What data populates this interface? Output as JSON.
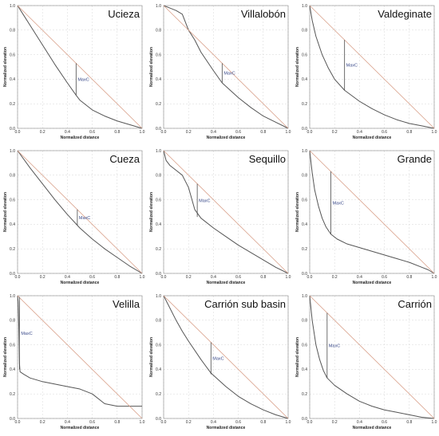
{
  "colors": {
    "curve": "#555555",
    "diagonal": "#d9a08a",
    "maxc_line": "#4a4a4a",
    "maxc_text": "#3a4a8a",
    "grid": "#d7d7d7",
    "frame": "#888888"
  },
  "chart_data": [
    {
      "type": "line",
      "title": "Ucieza",
      "xlabel": "Normalized distance",
      "ylabel": "Normalized elevation",
      "xlim": [
        0,
        1
      ],
      "ylim": [
        0,
        1
      ],
      "xticks": [
        "0.0",
        "0.2",
        "0.4",
        "0.6",
        "0.8",
        "1.0"
      ],
      "yticks": [
        "0.0",
        "0.2",
        "0.4",
        "0.6",
        "0.8",
        "1.0"
      ],
      "grid": true,
      "series": [
        {
          "role": "curve",
          "x": [
            0,
            0.05,
            0.1,
            0.2,
            0.3,
            0.4,
            0.47,
            0.5,
            0.55,
            0.6,
            0.7,
            0.8,
            0.9,
            1.0
          ],
          "y": [
            1.0,
            0.92,
            0.84,
            0.68,
            0.52,
            0.37,
            0.27,
            0.23,
            0.19,
            0.15,
            0.1,
            0.06,
            0.03,
            0.0
          ]
        },
        {
          "role": "diagonal",
          "x": [
            0,
            1
          ],
          "y": [
            1,
            0
          ]
        }
      ],
      "annotation": {
        "text": "MaxC",
        "x": 0.47,
        "y_from": 0.27,
        "y_to": 0.53
      }
    },
    {
      "type": "line",
      "title": "Villalobón",
      "xlabel": "Normalized distance",
      "ylabel": "Normalized elevation",
      "xlim": [
        0,
        1
      ],
      "ylim": [
        0,
        1
      ],
      "xticks": [
        "0.0",
        "0.2",
        "0.4",
        "0.6",
        "0.8",
        "1.0"
      ],
      "yticks": [
        "0.0",
        "0.2",
        "0.4",
        "0.6",
        "0.8",
        "1.0"
      ],
      "grid": true,
      "series": [
        {
          "role": "curve",
          "x": [
            0,
            0.05,
            0.1,
            0.15,
            0.2,
            0.25,
            0.3,
            0.4,
            0.47,
            0.6,
            0.7,
            0.8,
            0.9,
            1.0
          ],
          "y": [
            1.0,
            0.98,
            0.96,
            0.93,
            0.8,
            0.72,
            0.62,
            0.47,
            0.37,
            0.25,
            0.17,
            0.1,
            0.05,
            0.0
          ]
        },
        {
          "role": "diagonal",
          "x": [
            0,
            1
          ],
          "y": [
            1,
            0
          ]
        }
      ],
      "annotation": {
        "text": "MaxC",
        "x": 0.47,
        "y_from": 0.37,
        "y_to": 0.53
      }
    },
    {
      "type": "line",
      "title": "Valdeginate",
      "xlabel": "Normalized distance",
      "ylabel": "Normalized elevation",
      "xlim": [
        0,
        1
      ],
      "ylim": [
        0,
        1
      ],
      "xticks": [
        "0.0",
        "0.2",
        "0.4",
        "0.6",
        "0.8",
        "1.0"
      ],
      "yticks": [
        "0.0",
        "0.2",
        "0.4",
        "0.6",
        "0.8",
        "1.0"
      ],
      "grid": true,
      "series": [
        {
          "role": "curve",
          "x": [
            0,
            0.02,
            0.05,
            0.1,
            0.15,
            0.2,
            0.28,
            0.4,
            0.5,
            0.6,
            0.7,
            0.8,
            0.9,
            1.0
          ],
          "y": [
            1.0,
            0.88,
            0.75,
            0.6,
            0.49,
            0.4,
            0.31,
            0.22,
            0.16,
            0.11,
            0.07,
            0.04,
            0.02,
            0.0
          ]
        },
        {
          "role": "diagonal",
          "x": [
            0,
            1
          ],
          "y": [
            1,
            0
          ]
        }
      ],
      "annotation": {
        "text": "MaxC",
        "x": 0.28,
        "y_from": 0.31,
        "y_to": 0.72
      }
    },
    {
      "type": "line",
      "title": "Cueza",
      "xlabel": "Normalized distance",
      "ylabel": "Normalized elevation",
      "xlim": [
        0,
        1
      ],
      "ylim": [
        0,
        1
      ],
      "xticks": [
        "0.0",
        "0.2",
        "0.4",
        "0.6",
        "0.8",
        "1.0"
      ],
      "yticks": [
        "0.0",
        "0.2",
        "0.4",
        "0.6",
        "0.8",
        "1.0"
      ],
      "grid": true,
      "series": [
        {
          "role": "curve",
          "x": [
            0,
            0.1,
            0.2,
            0.3,
            0.4,
            0.5,
            0.6,
            0.7,
            0.8,
            0.9,
            1.0
          ],
          "y": [
            1.0,
            0.86,
            0.73,
            0.6,
            0.48,
            0.37,
            0.28,
            0.2,
            0.13,
            0.06,
            0.0
          ]
        },
        {
          "role": "diagonal",
          "x": [
            0,
            1
          ],
          "y": [
            1,
            0
          ]
        }
      ],
      "annotation": {
        "text": "MaxC",
        "x": 0.48,
        "y_from": 0.39,
        "y_to": 0.52
      }
    },
    {
      "type": "line",
      "title": "Sequillo",
      "xlabel": "Normalized distance",
      "ylabel": "Normalized elevation",
      "xlim": [
        0,
        1
      ],
      "ylim": [
        0,
        1
      ],
      "xticks": [
        "0.0",
        "0.2",
        "0.4",
        "0.6",
        "0.8",
        "1.0"
      ],
      "yticks": [
        "0.0",
        "0.2",
        "0.4",
        "0.6",
        "0.8",
        "1.0"
      ],
      "grid": true,
      "series": [
        {
          "role": "curve",
          "x": [
            0,
            0.02,
            0.05,
            0.1,
            0.15,
            0.2,
            0.25,
            0.3,
            0.4,
            0.5,
            0.6,
            0.7,
            0.8,
            0.9,
            1.0
          ],
          "y": [
            1.0,
            0.92,
            0.88,
            0.84,
            0.8,
            0.7,
            0.52,
            0.45,
            0.37,
            0.3,
            0.23,
            0.17,
            0.11,
            0.05,
            0.0
          ]
        },
        {
          "role": "diagonal",
          "x": [
            0,
            1
          ],
          "y": [
            1,
            0
          ]
        }
      ],
      "annotation": {
        "text": "MaxC",
        "x": 0.27,
        "y_from": 0.46,
        "y_to": 0.73
      }
    },
    {
      "type": "line",
      "title": "Grande",
      "xlabel": "Normalized distance",
      "ylabel": "Normalized elevation",
      "xlim": [
        0,
        1
      ],
      "ylim": [
        0,
        1
      ],
      "xticks": [
        "0.0",
        "0.2",
        "0.4",
        "0.6",
        "0.8",
        "1.0"
      ],
      "yticks": [
        "0.0",
        "0.2",
        "0.4",
        "0.6",
        "0.8",
        "1.0"
      ],
      "grid": true,
      "series": [
        {
          "role": "curve",
          "x": [
            0,
            0.02,
            0.04,
            0.07,
            0.1,
            0.13,
            0.17,
            0.22,
            0.3,
            0.4,
            0.5,
            0.6,
            0.7,
            0.8,
            0.9,
            0.95,
            1.0
          ],
          "y": [
            1.0,
            0.82,
            0.68,
            0.55,
            0.45,
            0.38,
            0.32,
            0.28,
            0.24,
            0.21,
            0.18,
            0.15,
            0.12,
            0.09,
            0.05,
            0.03,
            0.0
          ]
        },
        {
          "role": "diagonal",
          "x": [
            0,
            1
          ],
          "y": [
            1,
            0
          ]
        }
      ],
      "annotation": {
        "text": "MaxC",
        "x": 0.17,
        "y_from": 0.32,
        "y_to": 0.83
      }
    },
    {
      "type": "line",
      "title": "Velilla",
      "xlabel": "Normalized distance",
      "ylabel": "Normalized elevation",
      "xlim": [
        0,
        1
      ],
      "ylim": [
        0,
        1
      ],
      "xticks": [
        "0.0",
        "0.2",
        "0.4",
        "0.6",
        "0.8",
        "1.0"
      ],
      "yticks": [
        "0.0",
        "0.2",
        "0.4",
        "0.6",
        "0.8",
        "1.0"
      ],
      "grid": true,
      "series": [
        {
          "role": "curve",
          "x": [
            0,
            0.005,
            0.01,
            0.015,
            0.02,
            0.05,
            0.1,
            0.2,
            0.3,
            0.4,
            0.5,
            0.6,
            0.7,
            0.8,
            0.9,
            0.95,
            1.0
          ],
          "y": [
            1.0,
            0.95,
            0.75,
            0.45,
            0.38,
            0.36,
            0.33,
            0.3,
            0.28,
            0.26,
            0.24,
            0.2,
            0.12,
            0.1,
            0.1,
            0.1,
            0.1
          ]
        },
        {
          "role": "diagonal",
          "x": [
            0,
            1
          ],
          "y": [
            1,
            0
          ]
        }
      ],
      "annotation": {
        "text": "MaxC",
        "x": 0.015,
        "y_from": 0.4,
        "y_to": 0.99
      }
    },
    {
      "type": "line",
      "title": "Carrión sub basin",
      "xlabel": "Normalized distance",
      "ylabel": "Normalized elevation",
      "xlim": [
        0,
        1
      ],
      "ylim": [
        0,
        1
      ],
      "xticks": [
        "0.0",
        "0.2",
        "0.4",
        "0.6",
        "0.8",
        "1.0"
      ],
      "yticks": [
        "0.0",
        "0.2",
        "0.4",
        "0.6",
        "0.8",
        "1.0"
      ],
      "grid": true,
      "series": [
        {
          "role": "curve",
          "x": [
            0,
            0.05,
            0.1,
            0.15,
            0.2,
            0.3,
            0.38,
            0.5,
            0.6,
            0.7,
            0.8,
            0.9,
            1.0
          ],
          "y": [
            1.0,
            0.9,
            0.8,
            0.71,
            0.63,
            0.48,
            0.37,
            0.26,
            0.18,
            0.12,
            0.07,
            0.03,
            0.0
          ]
        },
        {
          "role": "diagonal",
          "x": [
            0,
            1
          ],
          "y": [
            1,
            0
          ]
        }
      ],
      "annotation": {
        "text": "MaxC",
        "x": 0.38,
        "y_from": 0.36,
        "y_to": 0.62
      }
    },
    {
      "type": "line",
      "title": "Carrión",
      "xlabel": "Normalized distance",
      "ylabel": "Normalized elevation",
      "xlim": [
        0,
        1
      ],
      "ylim": [
        0,
        1
      ],
      "xticks": [
        "0.0",
        "0.2",
        "0.4",
        "0.6",
        "0.8",
        "1.0"
      ],
      "yticks": [
        "0.0",
        "0.2",
        "0.4",
        "0.6",
        "0.8",
        "1.0"
      ],
      "grid": true,
      "series": [
        {
          "role": "curve",
          "x": [
            0,
            0.02,
            0.05,
            0.08,
            0.11,
            0.14,
            0.2,
            0.3,
            0.4,
            0.5,
            0.6,
            0.7,
            0.8,
            0.9,
            1.0
          ],
          "y": [
            1.0,
            0.8,
            0.6,
            0.48,
            0.39,
            0.33,
            0.27,
            0.2,
            0.14,
            0.1,
            0.07,
            0.05,
            0.03,
            0.01,
            0.0
          ]
        },
        {
          "role": "diagonal",
          "x": [
            0,
            1
          ],
          "y": [
            1,
            0
          ]
        }
      ],
      "annotation": {
        "text": "MaxC",
        "x": 0.14,
        "y_from": 0.33,
        "y_to": 0.86
      }
    }
  ]
}
